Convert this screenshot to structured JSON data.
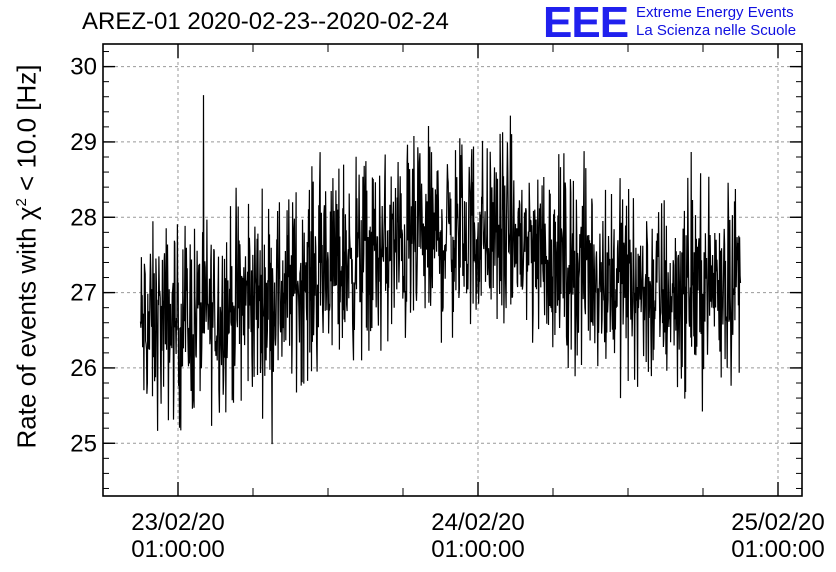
{
  "chart_data": {
    "type": "line",
    "title": "AREZ-01 2020-02-23--2020-02-24",
    "ylabel_prefix": "Rate of events with ",
    "ylabel_symbol": "χ",
    "ylabel_exp": "2",
    "ylabel_suffix": " < 10.0 [Hz]",
    "ylim": [
      24.3,
      30.3
    ],
    "yticks": [
      "25",
      "26",
      "27",
      "28",
      "29",
      "30"
    ],
    "xlim": [
      -0.25,
      2.08
    ],
    "xticks": [
      {
        "pos": 0,
        "date": "23/02/20",
        "time": "01:00:00"
      },
      {
        "pos": 1,
        "date": "24/02/20",
        "time": "01:00:00"
      },
      {
        "pos": 2,
        "date": "25/02/20",
        "time": "01:00:00"
      }
    ],
    "grid": true,
    "series": [
      {
        "x": [
          -0.125,
          -0.083,
          -0.042,
          0.0,
          0.042,
          0.083,
          0.125,
          0.167,
          0.208,
          0.25,
          0.292,
          0.333,
          0.375,
          0.417,
          0.458,
          0.5,
          0.542,
          0.583,
          0.625,
          0.667,
          0.708,
          0.75,
          0.792,
          0.833,
          0.875,
          0.917,
          0.958,
          1.0,
          1.042,
          1.083,
          1.125,
          1.167,
          1.208,
          1.25,
          1.292,
          1.333,
          1.375,
          1.417,
          1.458,
          1.5,
          1.542,
          1.583,
          1.625,
          1.667,
          1.708,
          1.75,
          1.792,
          1.833,
          1.875
        ],
        "mean": [
          26.5,
          26.55,
          26.6,
          26.6,
          26.65,
          26.7,
          26.75,
          26.8,
          26.85,
          26.9,
          26.95,
          27.0,
          27.05,
          27.15,
          27.25,
          27.35,
          27.4,
          27.45,
          27.45,
          27.5,
          27.55,
          27.6,
          27.65,
          27.7,
          27.75,
          27.75,
          27.8,
          27.8,
          27.8,
          27.75,
          27.7,
          27.65,
          27.6,
          27.5,
          27.4,
          27.35,
          27.3,
          27.25,
          27.2,
          27.15,
          27.05,
          27.0,
          27.0,
          27.0,
          27.05,
          27.1,
          27.15,
          27.2,
          27.25
        ]
      }
    ]
  },
  "logo": {
    "mark": "EEE",
    "line1": "Extreme Energy Events",
    "line2": "La Scienza nelle Scuole"
  }
}
